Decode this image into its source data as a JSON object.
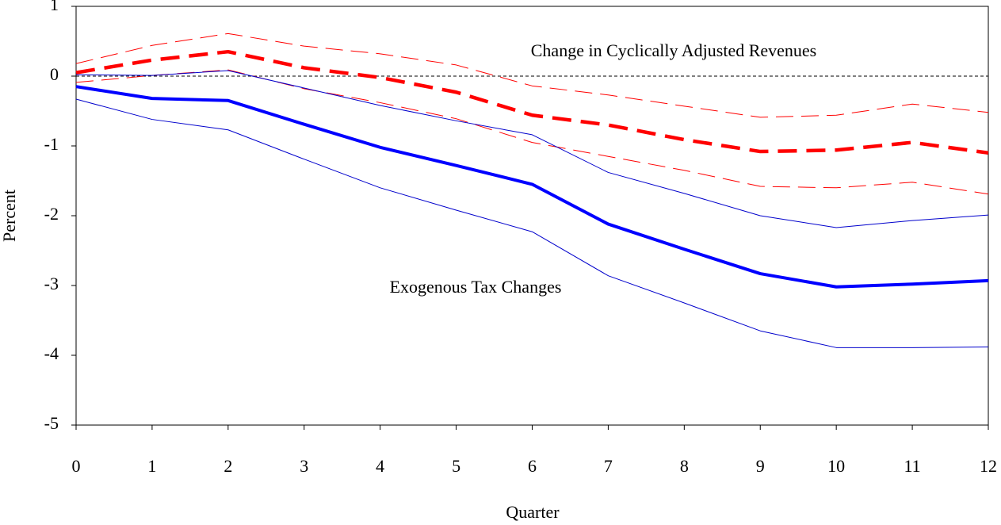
{
  "chart_data": {
    "type": "line",
    "x_label": "Quarter",
    "y_label": "Percent",
    "x": [
      0,
      1,
      2,
      3,
      4,
      5,
      6,
      7,
      8,
      9,
      10,
      11,
      12
    ],
    "xlim": [
      0,
      12
    ],
    "xticks": [
      0,
      1,
      2,
      3,
      4,
      5,
      6,
      7,
      8,
      9,
      10,
      11,
      12
    ],
    "ylim": [
      -5,
      1
    ],
    "yticks": [
      -5,
      -4,
      -3,
      -2,
      -1,
      0,
      1
    ],
    "reference_line": 0,
    "annotations": [
      "Change in Cyclically Adjusted Revenues",
      "Exogenous Tax Changes"
    ],
    "series": [
      {
        "color": "#ff0000",
        "width": 1,
        "dash": "22 10",
        "values": [
          0.18,
          0.44,
          0.61,
          0.43,
          0.32,
          0.16,
          -0.14,
          -0.27,
          -0.43,
          -0.59,
          -0.56,
          -0.4,
          -0.52
        ]
      },
      {
        "color": "#ff0000",
        "width": 1,
        "dash": "22 10",
        "values": [
          -0.09,
          0.01,
          0.09,
          -0.18,
          -0.38,
          -0.61,
          -0.95,
          -1.15,
          -1.35,
          -1.58,
          -1.6,
          -1.52,
          -1.69
        ]
      },
      {
        "color": "#ff0000",
        "width": 4.5,
        "dash": "24 12",
        "values": [
          0.05,
          0.23,
          0.35,
          0.12,
          -0.02,
          -0.23,
          -0.56,
          -0.7,
          -0.91,
          -1.08,
          -1.06,
          -0.95,
          -1.1
        ]
      },
      {
        "color": "#0000cc",
        "width": 1,
        "dash": "none",
        "values": [
          0.02,
          0.01,
          0.08,
          -0.17,
          -0.42,
          -0.64,
          -0.84,
          -1.38,
          -1.68,
          -2.0,
          -2.17,
          -2.07,
          -1.99
        ]
      },
      {
        "color": "#0000cc",
        "width": 1,
        "dash": "none",
        "values": [
          -0.33,
          -0.62,
          -0.77,
          -1.19,
          -1.6,
          -1.92,
          -2.23,
          -2.86,
          -3.25,
          -3.65,
          -3.89,
          -3.89,
          -3.88
        ]
      },
      {
        "color": "#0000ff",
        "width": 4,
        "dash": "none",
        "values": [
          -0.15,
          -0.32,
          -0.35,
          -0.69,
          -1.02,
          -1.28,
          -1.55,
          -2.12,
          -2.48,
          -2.83,
          -3.02,
          -2.98,
          -2.93
        ]
      }
    ]
  }
}
